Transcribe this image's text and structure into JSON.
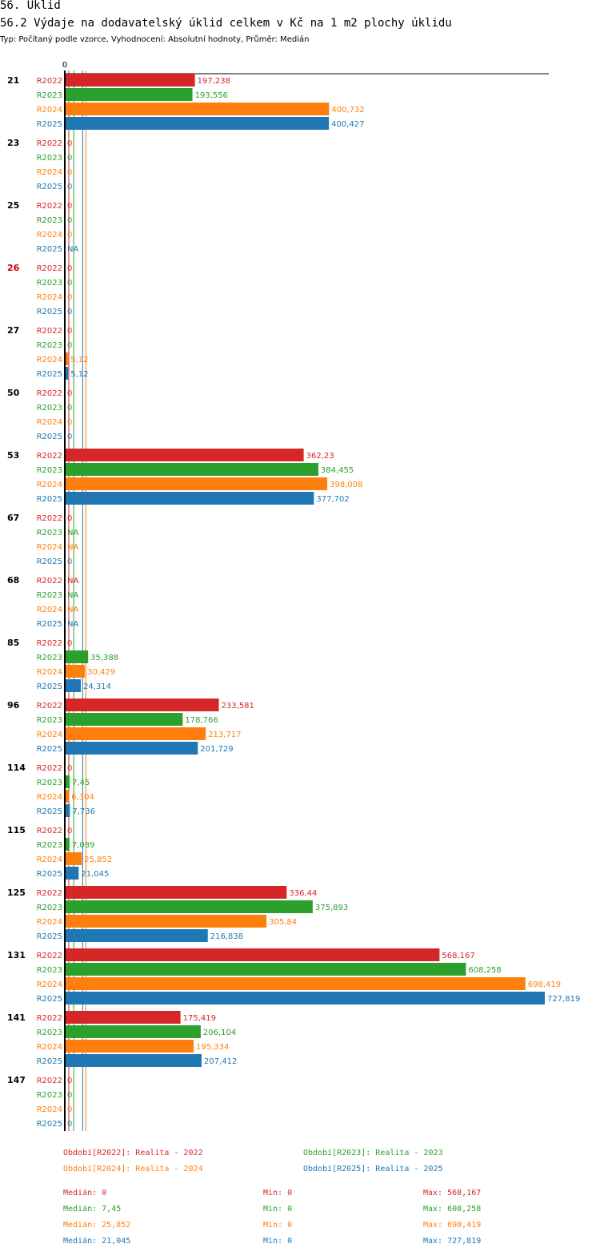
{
  "header": {
    "title": "56. Úklid",
    "subtitle": "56.2 Výdaje na dodavatelský úklid celkem v Kč na 1 m2 plochy úklidu",
    "type_line": "Typ: Počítaný podle vzorce, Vyhodnocení: Absolutní hodnoty, Průměr: Medián"
  },
  "colors": {
    "R2022": "#d62728",
    "R2023": "#2ca02c",
    "R2024": "#ff7f0e",
    "R2025": "#1f77b4",
    "highlight_group": "#cc0000"
  },
  "chart_data": {
    "type": "bar",
    "orientation": "horizontal",
    "title": "56.2 Výdaje na dodavatelský úklid celkem v Kč na 1 m2 plochy úklidu",
    "x_axis_zero_label": "0",
    "xlim": [
      0,
      727.819
    ],
    "series_names": [
      "R2022",
      "R2023",
      "R2024",
      "R2025"
    ],
    "groups": [
      {
        "id": "21",
        "highlight": false,
        "bars": [
          {
            "series": "R2022",
            "value": 197.238,
            "label": "197,238"
          },
          {
            "series": "R2023",
            "value": 193.556,
            "label": "193,556"
          },
          {
            "series": "R2024",
            "value": 400.732,
            "label": "400,732"
          },
          {
            "series": "R2025",
            "value": 400.427,
            "label": "400,427"
          }
        ]
      },
      {
        "id": "23",
        "highlight": false,
        "bars": [
          {
            "series": "R2022",
            "value": 0,
            "label": "0"
          },
          {
            "series": "R2023",
            "value": 0,
            "label": "0"
          },
          {
            "series": "R2024",
            "value": 0,
            "label": "0"
          },
          {
            "series": "R2025",
            "value": 0,
            "label": "0"
          }
        ]
      },
      {
        "id": "25",
        "highlight": false,
        "bars": [
          {
            "series": "R2022",
            "value": 0,
            "label": "0"
          },
          {
            "series": "R2023",
            "value": 0,
            "label": "0"
          },
          {
            "series": "R2024",
            "value": 0,
            "label": "0"
          },
          {
            "series": "R2025",
            "value": null,
            "label": "NA"
          }
        ]
      },
      {
        "id": "26",
        "highlight": true,
        "bars": [
          {
            "series": "R2022",
            "value": 0,
            "label": "0"
          },
          {
            "series": "R2023",
            "value": 0,
            "label": "0"
          },
          {
            "series": "R2024",
            "value": 0,
            "label": "0"
          },
          {
            "series": "R2025",
            "value": 0,
            "label": "0"
          }
        ]
      },
      {
        "id": "27",
        "highlight": false,
        "bars": [
          {
            "series": "R2022",
            "value": 0,
            "label": "0"
          },
          {
            "series": "R2023",
            "value": 0,
            "label": "0"
          },
          {
            "series": "R2024",
            "value": 5.12,
            "label": "5,12"
          },
          {
            "series": "R2025",
            "value": 5.12,
            "label": "5,12"
          }
        ]
      },
      {
        "id": "50",
        "highlight": false,
        "bars": [
          {
            "series": "R2022",
            "value": 0,
            "label": "0"
          },
          {
            "series": "R2023",
            "value": 0,
            "label": "0"
          },
          {
            "series": "R2024",
            "value": 0,
            "label": "0"
          },
          {
            "series": "R2025",
            "value": 0,
            "label": "0"
          }
        ]
      },
      {
        "id": "53",
        "highlight": false,
        "bars": [
          {
            "series": "R2022",
            "value": 362.23,
            "label": "362,23"
          },
          {
            "series": "R2023",
            "value": 384.455,
            "label": "384,455"
          },
          {
            "series": "R2024",
            "value": 398.008,
            "label": "398,008"
          },
          {
            "series": "R2025",
            "value": 377.702,
            "label": "377,702"
          }
        ]
      },
      {
        "id": "67",
        "highlight": false,
        "bars": [
          {
            "series": "R2022",
            "value": 0,
            "label": "0"
          },
          {
            "series": "R2023",
            "value": null,
            "label": "NA"
          },
          {
            "series": "R2024",
            "value": null,
            "label": "NA"
          },
          {
            "series": "R2025",
            "value": 0,
            "label": "0"
          }
        ]
      },
      {
        "id": "68",
        "highlight": false,
        "bars": [
          {
            "series": "R2022",
            "value": null,
            "label": "NA"
          },
          {
            "series": "R2023",
            "value": null,
            "label": "NA"
          },
          {
            "series": "R2024",
            "value": null,
            "label": "NA"
          },
          {
            "series": "R2025",
            "value": null,
            "label": "NA"
          }
        ]
      },
      {
        "id": "85",
        "highlight": false,
        "bars": [
          {
            "series": "R2022",
            "value": 0,
            "label": "0"
          },
          {
            "series": "R2023",
            "value": 35.388,
            "label": "35,388"
          },
          {
            "series": "R2024",
            "value": 30.429,
            "label": "30,429"
          },
          {
            "series": "R2025",
            "value": 24.314,
            "label": "24,314"
          }
        ]
      },
      {
        "id": "96",
        "highlight": false,
        "bars": [
          {
            "series": "R2022",
            "value": 233.581,
            "label": "233,581"
          },
          {
            "series": "R2023",
            "value": 178.766,
            "label": "178,766"
          },
          {
            "series": "R2024",
            "value": 213.717,
            "label": "213,717"
          },
          {
            "series": "R2025",
            "value": 201.729,
            "label": "201,729"
          }
        ]
      },
      {
        "id": "114",
        "highlight": false,
        "bars": [
          {
            "series": "R2022",
            "value": 0,
            "label": "0"
          },
          {
            "series": "R2023",
            "value": 7.45,
            "label": "7,45"
          },
          {
            "series": "R2024",
            "value": 6.304,
            "label": "6,304"
          },
          {
            "series": "R2025",
            "value": 7.736,
            "label": "7,736"
          }
        ]
      },
      {
        "id": "115",
        "highlight": false,
        "bars": [
          {
            "series": "R2022",
            "value": 0,
            "label": "0"
          },
          {
            "series": "R2023",
            "value": 7.089,
            "label": "7,089"
          },
          {
            "series": "R2024",
            "value": 25.852,
            "label": "25,852"
          },
          {
            "series": "R2025",
            "value": 21.045,
            "label": "21,045"
          }
        ]
      },
      {
        "id": "125",
        "highlight": false,
        "bars": [
          {
            "series": "R2022",
            "value": 336.44,
            "label": "336,44"
          },
          {
            "series": "R2023",
            "value": 375.893,
            "label": "375,893"
          },
          {
            "series": "R2024",
            "value": 305.84,
            "label": "305,84"
          },
          {
            "series": "R2025",
            "value": 216.838,
            "label": "216,838"
          }
        ]
      },
      {
        "id": "131",
        "highlight": false,
        "bars": [
          {
            "series": "R2022",
            "value": 568.167,
            "label": "568,167"
          },
          {
            "series": "R2023",
            "value": 608.258,
            "label": "608,258"
          },
          {
            "series": "R2024",
            "value": 698.419,
            "label": "698,419"
          },
          {
            "series": "R2025",
            "value": 727.819,
            "label": "727,819"
          }
        ]
      },
      {
        "id": "141",
        "highlight": false,
        "bars": [
          {
            "series": "R2022",
            "value": 175.419,
            "label": "175,419"
          },
          {
            "series": "R2023",
            "value": 206.104,
            "label": "206,104"
          },
          {
            "series": "R2024",
            "value": 195.334,
            "label": "195,334"
          },
          {
            "series": "R2025",
            "value": 207.412,
            "label": "207,412"
          }
        ]
      },
      {
        "id": "147",
        "highlight": false,
        "bars": [
          {
            "series": "R2022",
            "value": 0,
            "label": "0"
          },
          {
            "series": "R2023",
            "value": 0,
            "label": "0"
          },
          {
            "series": "R2024",
            "value": 0,
            "label": "0"
          },
          {
            "series": "R2025",
            "value": 0,
            "label": "0"
          }
        ]
      }
    ],
    "median_lines": [
      {
        "series": "R2022",
        "value": 0
      },
      {
        "series": "R2023",
        "value": 7.45
      },
      {
        "series": "R2024",
        "value": 25.852
      },
      {
        "series": "R2025",
        "value": 21.045
      }
    ]
  },
  "legend": {
    "r2022": "Období[R2022]: Realita - 2022",
    "r2023": "Období[R2023]: Realita - 2023",
    "r2024": "Období[R2024]: Realita - 2024",
    "r2025": "Období[R2025]: Realita - 2025"
  },
  "stats": {
    "r2022": {
      "median": "Medián: 0",
      "min": "Min: 0",
      "max": "Max: 568,167"
    },
    "r2023": {
      "median": "Medián: 7,45",
      "min": "Min: 0",
      "max": "Max: 608,258"
    },
    "r2024": {
      "median": "Medián: 25,852",
      "min": "Min: 0",
      "max": "Max: 698,419"
    },
    "r2025": {
      "median": "Medián: 21,045",
      "min": "Min: 0",
      "max": "Max: 727,819"
    }
  }
}
